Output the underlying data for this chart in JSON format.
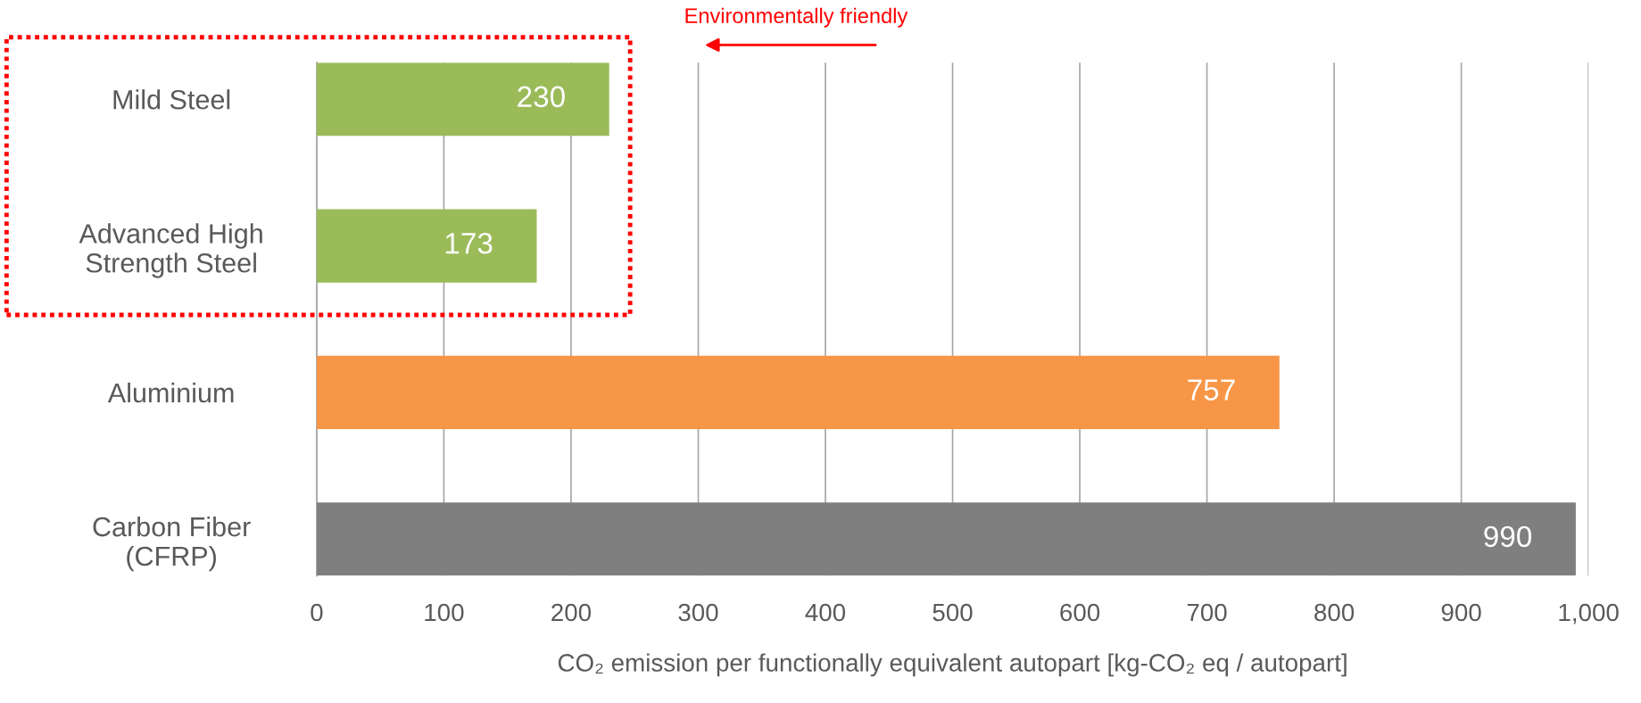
{
  "chart_data": {
    "type": "bar",
    "orientation": "horizontal",
    "categories": [
      "Mild Steel",
      "Advanced High\nStrength Steel",
      "Aluminium",
      "Carbon Fiber\n(CFRP)"
    ],
    "values": [
      230,
      173,
      757,
      990
    ],
    "colors": [
      "#9bbb59",
      "#9bbb59",
      "#f79646",
      "#7f7f7f"
    ],
    "xlim": [
      0,
      1000
    ],
    "xticks": [
      0,
      100,
      200,
      300,
      400,
      500,
      600,
      700,
      800,
      900,
      {
        "value": 1000,
        "label": "1,000"
      }
    ],
    "xlabel": "CO₂ emission per functionally equivalent autopart [kg-CO₂ eq / autopart]",
    "annotations": [
      "Environmentally friendly"
    ],
    "data_labels": true,
    "grid": "x",
    "legend": false
  }
}
